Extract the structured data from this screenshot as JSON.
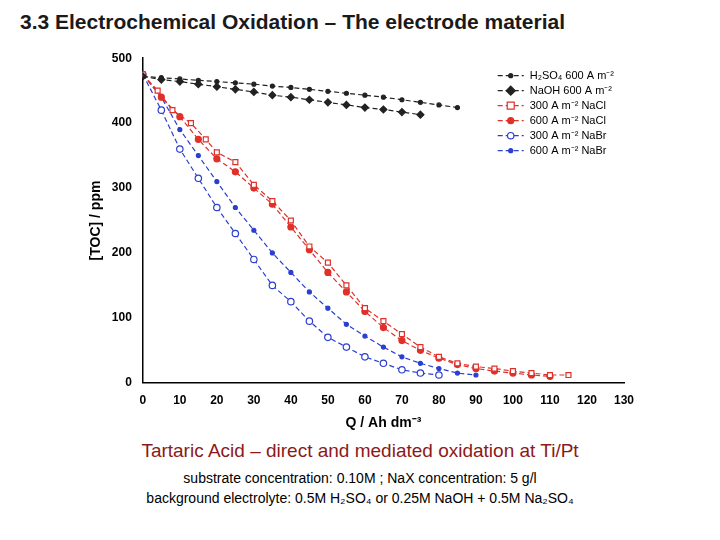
{
  "slide": {
    "heading": "3.3 Electrochemical Oxidation – The electrode material",
    "caption_lines": [
      "Tartaric Acid – direct and mediated oxidation at Ti/Pt",
      "substrate concentration: 0.10M ; NaX concentration: 5 g/l",
      "background electrolyte: 0.5M H₂SO₄  or  0.25M NaOH + 0.5M Na₂SO₄"
    ]
  },
  "chart_data": {
    "type": "line",
    "x_label": "Q / Ah dm⁻³",
    "y_label": "[TOC] / ppm",
    "xlim": [
      0,
      130
    ],
    "xticks": [
      0,
      10,
      20,
      30,
      40,
      50,
      60,
      70,
      80,
      90,
      100,
      110,
      120,
      130
    ],
    "ylim": [
      0,
      500
    ],
    "yticks": [
      0,
      100,
      200,
      300,
      400,
      500
    ],
    "grid": false,
    "legend": "upper right",
    "series": [
      {
        "name": "H₂SO₄ 600 A m⁻²",
        "color": "#222222",
        "marker": "dot",
        "line_style": "dashed",
        "x": [
          0,
          5,
          10,
          15,
          20,
          25,
          30,
          35,
          40,
          45,
          50,
          55,
          60,
          65,
          70,
          75,
          80,
          85
        ],
        "values": [
          472,
          470,
          468,
          466,
          464,
          462,
          460,
          457,
          455,
          452,
          449,
          446,
          443,
          440,
          436,
          432,
          428,
          424
        ]
      },
      {
        "name": "NaOH 600 A m⁻²",
        "color": "#222222",
        "marker": "diamond",
        "line_style": "dashed",
        "x": [
          0,
          5,
          10,
          15,
          20,
          25,
          30,
          35,
          40,
          45,
          50,
          55,
          60,
          65,
          70,
          75
        ],
        "values": [
          472,
          467,
          464,
          460,
          456,
          452,
          448,
          443,
          440,
          436,
          432,
          428,
          424,
          421,
          417,
          413
        ]
      },
      {
        "name": "300 A m⁻² NaCl",
        "color": "#e0302a",
        "marker": "open_square",
        "line_style": "dashed",
        "x": [
          0,
          4,
          8,
          13,
          17,
          20,
          25,
          30,
          35,
          40,
          45,
          50,
          55,
          60,
          65,
          70,
          75,
          80,
          85,
          90,
          95,
          100,
          105,
          110,
          115
        ],
        "values": [
          475,
          450,
          420,
          400,
          375,
          355,
          340,
          305,
          280,
          250,
          210,
          185,
          150,
          115,
          95,
          75,
          55,
          40,
          30,
          25,
          22,
          18,
          15,
          12,
          12
        ]
      },
      {
        "name": "600 A m⁻² NaCl",
        "color": "#e0302a",
        "marker": "circle",
        "line_style": "dashed",
        "x": [
          0,
          5,
          10,
          15,
          20,
          25,
          30,
          35,
          40,
          45,
          50,
          55,
          60,
          65,
          70,
          75,
          80,
          85,
          90,
          95,
          100,
          105,
          110
        ],
        "values": [
          475,
          440,
          410,
          375,
          345,
          325,
          300,
          275,
          240,
          205,
          170,
          140,
          110,
          85,
          65,
          50,
          38,
          28,
          22,
          18,
          15,
          12,
          10
        ]
      },
      {
        "name": "300 A m⁻² NaBr",
        "color": "#2a3fd0",
        "marker": "open_circle",
        "line_style": "dashed",
        "x": [
          0,
          5,
          10,
          15,
          20,
          25,
          30,
          35,
          40,
          45,
          50,
          55,
          60,
          65,
          70,
          75,
          80
        ],
        "values": [
          475,
          420,
          360,
          315,
          270,
          230,
          190,
          150,
          125,
          95,
          70,
          55,
          40,
          30,
          20,
          15,
          12
        ]
      },
      {
        "name": "600 A m⁻² NaBr",
        "color": "#2a3fd0",
        "marker": "dot",
        "line_style": "dashed",
        "x": [
          0,
          5,
          10,
          15,
          20,
          25,
          30,
          35,
          40,
          45,
          50,
          55,
          60,
          65,
          70,
          75,
          80,
          85,
          90
        ],
        "values": [
          475,
          440,
          390,
          350,
          310,
          270,
          235,
          200,
          170,
          140,
          115,
          90,
          72,
          55,
          40,
          30,
          22,
          15,
          12
        ]
      }
    ]
  }
}
